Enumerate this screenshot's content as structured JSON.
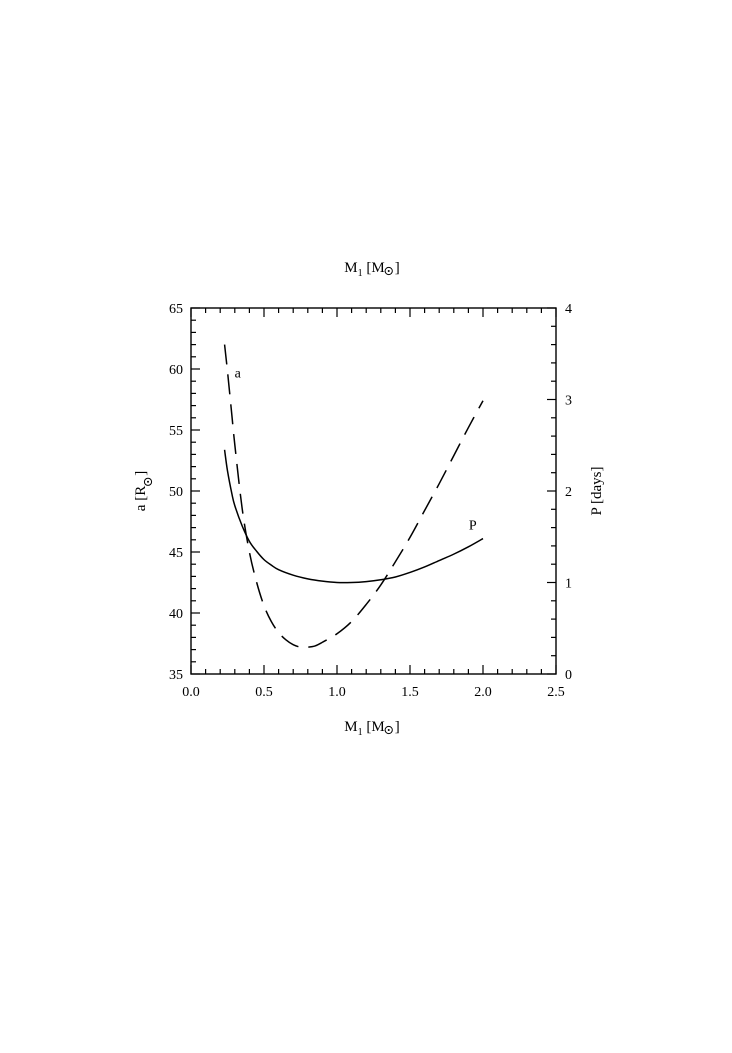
{
  "chart_data": {
    "type": "line",
    "title": "",
    "xlabel": {
      "main": "M",
      "sub": "1",
      "unit_open": " [M",
      "unit_close": "]"
    },
    "top_xlabel": {
      "main": "M",
      "sub": "1",
      "unit_open": " [M",
      "unit_close": "]"
    },
    "ylabel_left": {
      "main": "a [R",
      "unit_close": "]"
    },
    "ylabel_right": "P [days]",
    "xlim": [
      0.0,
      2.5
    ],
    "ylim_left": [
      35,
      65
    ],
    "ylim_right": [
      0,
      4
    ],
    "x_ticks": [
      "0.0",
      "0.5",
      "1.0",
      "1.5",
      "2.0",
      "2.5"
    ],
    "y_left_ticks": [
      "35",
      "40",
      "45",
      "50",
      "55",
      "60",
      "65"
    ],
    "y_right_ticks": [
      "0",
      "1",
      "2",
      "3",
      "4"
    ],
    "grid": false,
    "legend": "none",
    "series": [
      {
        "name": "a",
        "axis": "left",
        "style": "dashed",
        "x": [
          0.23,
          0.25,
          0.28,
          0.3,
          0.35,
          0.4,
          0.45,
          0.5,
          0.55,
          0.6,
          0.65,
          0.7,
          0.75,
          0.8,
          0.85,
          0.9,
          1.0,
          1.1,
          1.2,
          1.3,
          1.4,
          1.5,
          1.6,
          1.7,
          1.8,
          1.9,
          2.0
        ],
        "y": [
          62.0,
          59.8,
          56.2,
          53.8,
          48.6,
          45.0,
          42.5,
          40.6,
          39.3,
          38.4,
          37.8,
          37.4,
          37.2,
          37.2,
          37.3,
          37.6,
          38.3,
          39.3,
          40.7,
          42.3,
          44.2,
          46.2,
          48.4,
          50.6,
          52.9,
          55.2,
          57.4
        ]
      },
      {
        "name": "P",
        "axis": "right",
        "style": "solid",
        "x": [
          0.23,
          0.25,
          0.28,
          0.3,
          0.35,
          0.4,
          0.45,
          0.5,
          0.55,
          0.6,
          0.7,
          0.8,
          0.9,
          1.0,
          1.1,
          1.2,
          1.3,
          1.4,
          1.5,
          1.6,
          1.7,
          1.8,
          1.9,
          2.0
        ],
        "y": [
          2.45,
          2.22,
          1.97,
          1.84,
          1.62,
          1.45,
          1.34,
          1.25,
          1.19,
          1.14,
          1.08,
          1.04,
          1.015,
          1.0,
          1.0,
          1.01,
          1.03,
          1.06,
          1.11,
          1.17,
          1.24,
          1.31,
          1.39,
          1.48
        ]
      }
    ],
    "annotations": [
      {
        "text": "a",
        "series": "a",
        "x": 0.32,
        "y_left": 59.3
      },
      {
        "text": "P",
        "series": "P",
        "x": 1.93,
        "y_right": 1.58
      }
    ]
  }
}
